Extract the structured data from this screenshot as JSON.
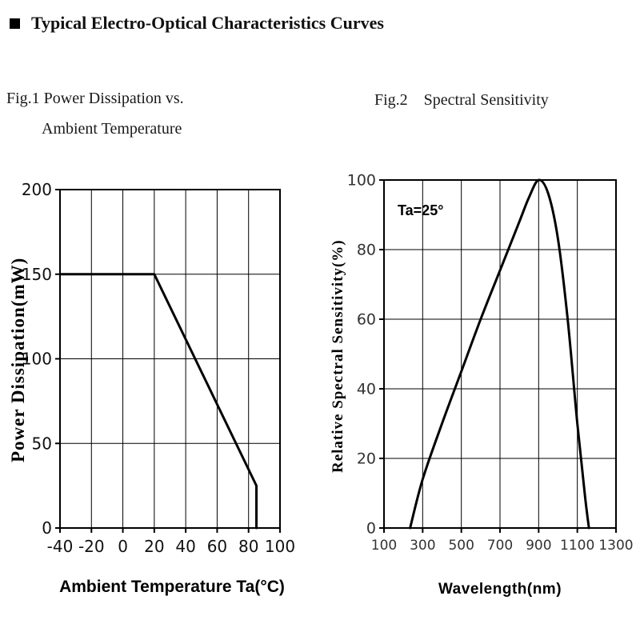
{
  "page": {
    "background": "#ffffff",
    "text_color": "#111111"
  },
  "header": {
    "bullet": "■",
    "title": "Typical Electro-Optical Characteristics Curves"
  },
  "figures": {
    "fig1": {
      "caption_line1": "Fig.1 Power Dissipation vs.",
      "caption_line2": "Ambient Temperature"
    },
    "fig2": {
      "caption": "Fig.2    Spectral Sensitivity"
    }
  },
  "chart_data": [
    {
      "type": "line",
      "title": "Fig.1 Power Dissipation vs. Ambient Temperature",
      "xlabel": "Ambient Temperature Ta(°C)",
      "ylabel": "Power Dissipation(mW)",
      "xlim": [
        -40,
        100
      ],
      "ylim": [
        0,
        200
      ],
      "xticks": [
        -40,
        -20,
        0,
        20,
        40,
        60,
        80,
        100
      ],
      "yticks": [
        0,
        50,
        100,
        150,
        200
      ],
      "grid": true,
      "line_color": "#000000",
      "axis_color": "#000000",
      "series": [
        {
          "name": "power-dissipation",
          "smooth": false,
          "points": [
            [
              -40,
              150
            ],
            [
              20,
              150
            ],
            [
              85,
              25
            ],
            [
              85,
              0
            ]
          ]
        }
      ]
    },
    {
      "type": "line",
      "title": "Fig.2 Spectral Sensitivity",
      "xlabel": "Wavelength(nm)",
      "ylabel": "Relative Spectral Sensitivity(%)",
      "xlim": [
        100,
        1300
      ],
      "ylim": [
        0,
        100
      ],
      "xticks": [
        100,
        300,
        500,
        700,
        900,
        1100,
        1300
      ],
      "yticks": [
        0,
        20,
        40,
        60,
        80,
        100
      ],
      "grid": true,
      "annotation": "Ta=25°",
      "line_color": "#000000",
      "axis_color": "#000000",
      "series": [
        {
          "name": "relative-spectral-sensitivity",
          "smooth": true,
          "points": [
            [
              235,
              0
            ],
            [
              300,
              14
            ],
            [
              400,
              30
            ],
            [
              500,
              45
            ],
            [
              600,
              60
            ],
            [
              700,
              74
            ],
            [
              800,
              88
            ],
            [
              850,
              95
            ],
            [
              900,
              100
            ],
            [
              950,
              96
            ],
            [
              1000,
              83
            ],
            [
              1050,
              60
            ],
            [
              1100,
              30
            ],
            [
              1140,
              9
            ],
            [
              1160,
              0
            ]
          ]
        }
      ]
    }
  ]
}
